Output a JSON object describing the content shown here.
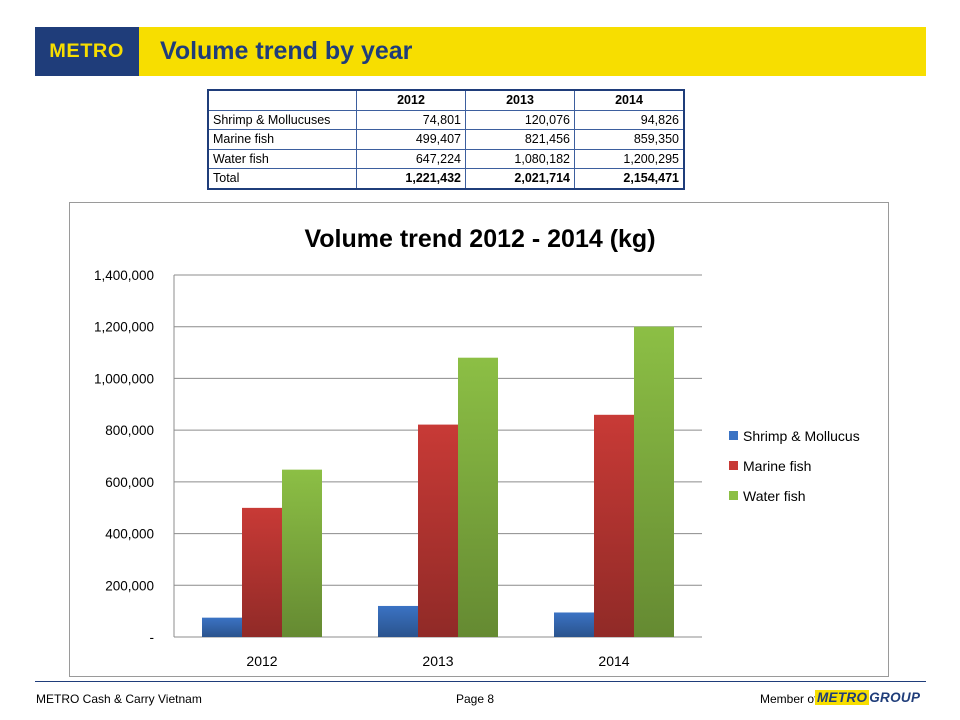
{
  "header": {
    "logo": "METRO",
    "title": "Volume trend by year"
  },
  "table": {
    "columns": [
      "2012",
      "2013",
      "2014"
    ],
    "rows": [
      {
        "label": "Shrimp & Mollucuses",
        "values": [
          "74,801",
          "120,076",
          "94,826"
        ]
      },
      {
        "label": "Marine fish",
        "values": [
          "499,407",
          "821,456",
          "859,350"
        ]
      },
      {
        "label": "Water fish",
        "values": [
          "647,224",
          "1,080,182",
          "1,200,295"
        ]
      },
      {
        "label": "Total",
        "values": [
          "1,221,432",
          "2,021,714",
          "2,154,471"
        ]
      }
    ]
  },
  "chart_data": {
    "type": "bar",
    "title": "Volume trend 2012 - 2014 (kg)",
    "categories": [
      "2012",
      "2013",
      "2014"
    ],
    "series": [
      {
        "name": "Shrimp & Mollucus",
        "values": [
          74801,
          120076,
          94826
        ],
        "color": "#3b73c4"
      },
      {
        "name": "Marine fish",
        "values": [
          499407,
          821456,
          859350
        ],
        "color": "#c83a36"
      },
      {
        "name": "Water fish",
        "values": [
          647224,
          1080182,
          1200295
        ],
        "color": "#8cbf45"
      }
    ],
    "ylim": [
      0,
      1400000
    ],
    "yticks": [
      0,
      200000,
      400000,
      600000,
      800000,
      1000000,
      1200000,
      1400000
    ],
    "ytick_labels": [
      "-",
      "200,000",
      "400,000",
      "600,000",
      "800,000",
      "1,000,000",
      "1,200,000",
      "1,400,000"
    ],
    "grid": true,
    "legend_position": "right"
  },
  "footer": {
    "company": "METRO Cash & Carry Vietnam",
    "page": "Page 8",
    "member_of": "Member of",
    "group_metro": "METRO",
    "group_name": "GROUP"
  }
}
